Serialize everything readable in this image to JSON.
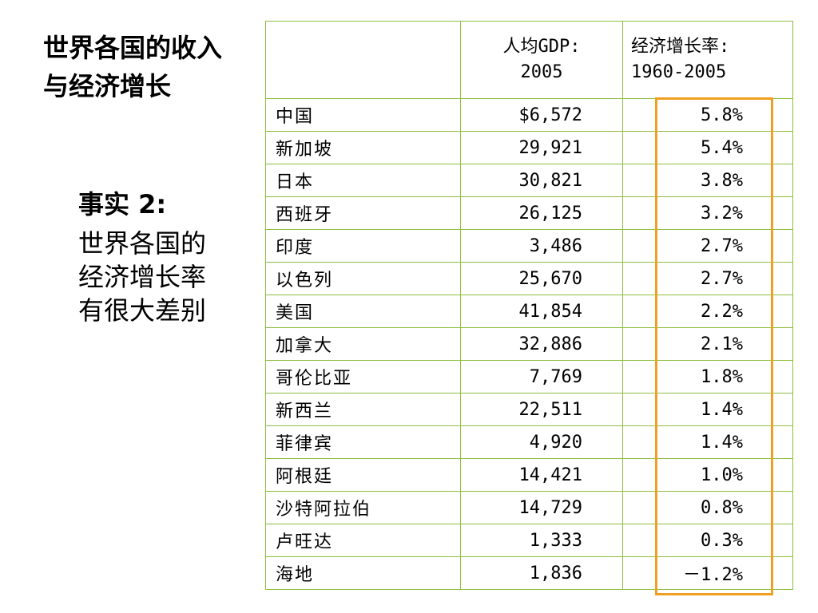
{
  "title": "世界各国的收入与经济增长",
  "fact": {
    "heading": "事实 2:",
    "body": "世界各国的经济增长率有很大差别"
  },
  "table": {
    "headers": {
      "country": "",
      "gdp_line1": "人均GDP:",
      "gdp_line2": "2005",
      "growth_line1": "经济增长率:",
      "growth_line2": "1960-2005"
    },
    "rows": [
      {
        "country": "中国",
        "gdp": "$6,572",
        "growth": "5.8%"
      },
      {
        "country": "新加坡",
        "gdp": "29,921",
        "growth": "5.4%"
      },
      {
        "country": "日本",
        "gdp": "30,821",
        "growth": "3.8%"
      },
      {
        "country": "西班牙",
        "gdp": "26,125",
        "growth": "3.2%"
      },
      {
        "country": "印度",
        "gdp": "3,486",
        "growth": "2.7%"
      },
      {
        "country": "以色列",
        "gdp": "25,670",
        "growth": "2.7%"
      },
      {
        "country": "美国",
        "gdp": "41,854",
        "growth": "2.2%"
      },
      {
        "country": "加拿大",
        "gdp": "32,886",
        "growth": "2.1%"
      },
      {
        "country": "哥伦比亚",
        "gdp": "7,769",
        "growth": "1.8%"
      },
      {
        "country": "新西兰",
        "gdp": "22,511",
        "growth": "1.4%"
      },
      {
        "country": "菲律宾",
        "gdp": "4,920",
        "growth": "1.4%"
      },
      {
        "country": "阿根廷",
        "gdp": "14,421",
        "growth": "1.0%"
      },
      {
        "country": "沙特阿拉伯",
        "gdp": "14,729",
        "growth": "0.8%"
      },
      {
        "country": "卢旺达",
        "gdp": "1,333",
        "growth": "0.3%"
      },
      {
        "country": "海地",
        "gdp": "1,836",
        "growth": "－1.2%"
      }
    ]
  },
  "colors": {
    "border": "#8dbe3f",
    "highlight": "#f0a020"
  }
}
